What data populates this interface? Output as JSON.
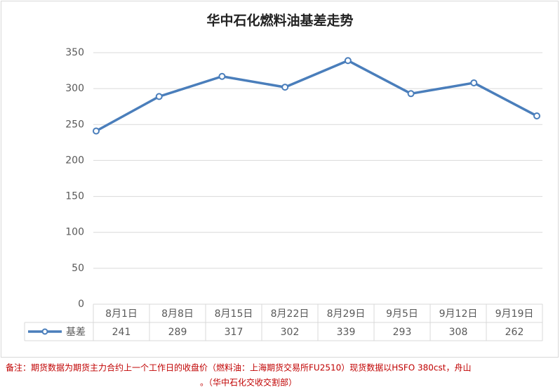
{
  "chart_data": {
    "type": "line",
    "title": "华中石化燃料油基差走势",
    "categories": [
      "8月1日",
      "8月8日",
      "8月15日",
      "8月22日",
      "8月29日",
      "9月5日",
      "9月12日",
      "9月19日"
    ],
    "series": [
      {
        "name": "基差",
        "color": "#4a7ebb",
        "values": [
          241,
          289,
          317,
          302,
          339,
          293,
          308,
          262
        ]
      }
    ],
    "ylim": [
      0,
      350
    ],
    "yticks": [
      0,
      50,
      100,
      150,
      200,
      250,
      300,
      350
    ],
    "grid": true,
    "note": [
      "备注：期货数据为期货主力合约上一个工作日的收盘价（燃料油：上海期货交易所FU2510）现货数据以HSFO 380cst，舟山",
      "。（华中石化交收交割部）"
    ]
  }
}
